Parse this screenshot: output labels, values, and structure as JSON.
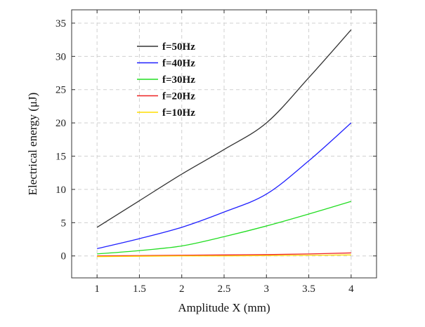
{
  "chart_data": {
    "type": "line",
    "title": "",
    "xlabel": "Amplitude X (mm)",
    "ylabel": "Electrical energy (μJ)",
    "xlim": [
      0.7,
      4.3
    ],
    "ylim": [
      -3.3,
      37
    ],
    "xticks": [
      1,
      1.5,
      2,
      2.5,
      3,
      3.5,
      4
    ],
    "xtick_labels": [
      "1",
      "1.5",
      "2",
      "2.5",
      "3",
      "3.5",
      "4"
    ],
    "yticks": [
      0,
      5,
      10,
      15,
      20,
      25,
      30,
      35
    ],
    "ytick_labels": [
      "0",
      "5",
      "10",
      "15",
      "20",
      "25",
      "30",
      "35"
    ],
    "grid": true,
    "legend_position": "top-left",
    "x": [
      1,
      1.5,
      2,
      2.5,
      3,
      3.5,
      4
    ],
    "series": [
      {
        "name": "f=50Hz",
        "color": "#333333",
        "values": [
          4.3,
          8.3,
          12.3,
          16.0,
          20.0,
          26.8,
          34.0
        ]
      },
      {
        "name": "f=40Hz",
        "color": "#2020ff",
        "values": [
          1.1,
          2.6,
          4.3,
          6.6,
          9.3,
          14.3,
          20.0
        ]
      },
      {
        "name": "f=30Hz",
        "color": "#22dd22",
        "values": [
          0.3,
          0.8,
          1.5,
          2.9,
          4.5,
          6.3,
          8.2
        ]
      },
      {
        "name": "f=20Hz",
        "color": "#ee2222",
        "values": [
          0.0,
          0.05,
          0.1,
          0.15,
          0.2,
          0.3,
          0.45
        ]
      },
      {
        "name": "f=10Hz",
        "color": "#ffdd00",
        "values": [
          -0.1,
          -0.05,
          0.0,
          0.0,
          0.05,
          0.1,
          0.15
        ]
      }
    ]
  }
}
